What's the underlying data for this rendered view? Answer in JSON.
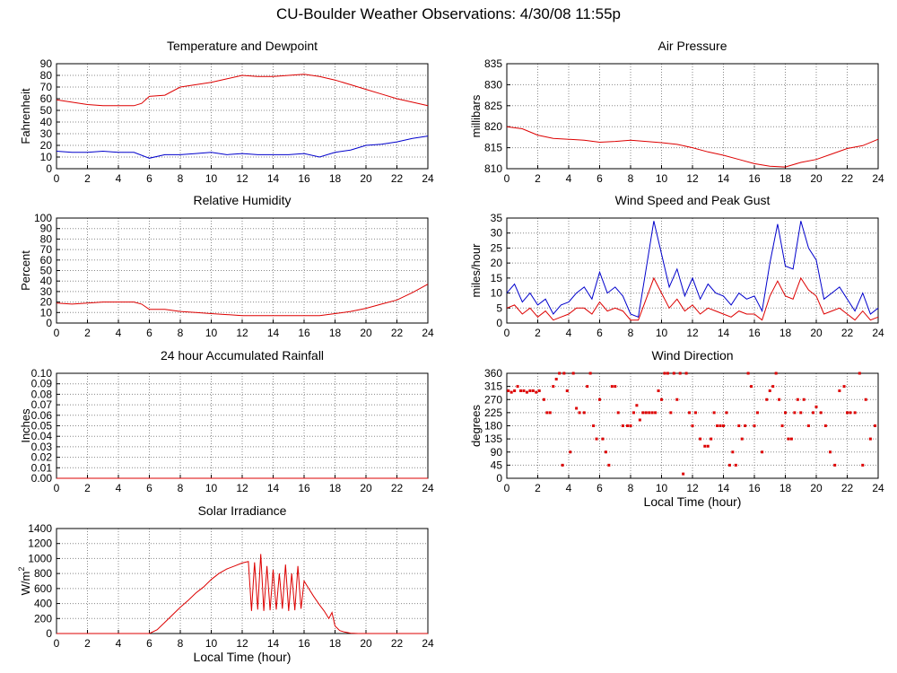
{
  "page": {
    "title": "CU-Boulder Weather Observations: 4/30/08 11:55p"
  },
  "colors": {
    "red": "#dd0000",
    "blue": "#0000cc",
    "grid": "#888888"
  },
  "chart_data": [
    {
      "id": "temp",
      "type": "line",
      "title": "Temperature and Dewpoint",
      "ylabel": "Fahrenheit",
      "xlabel": "",
      "xlim": [
        0,
        24
      ],
      "ylim": [
        0,
        90
      ],
      "xticks": [
        0,
        2,
        4,
        6,
        8,
        10,
        12,
        14,
        16,
        18,
        20,
        22,
        24
      ],
      "yticks": [
        0,
        10,
        20,
        30,
        40,
        50,
        60,
        70,
        80,
        90
      ],
      "grid": true,
      "series": [
        {
          "color": "#dd0000",
          "x": [
            0,
            1,
            2,
            3,
            4,
            5,
            5.5,
            6,
            7,
            8,
            9,
            10,
            11,
            12,
            13,
            14,
            15,
            16,
            17,
            18,
            19,
            20,
            21,
            22,
            23,
            24
          ],
          "y": [
            59,
            57,
            55,
            54,
            54,
            54,
            56,
            62,
            63,
            70,
            72,
            74,
            77,
            80,
            79,
            79,
            80,
            81,
            79,
            76,
            72,
            68,
            64,
            60,
            57,
            54
          ]
        },
        {
          "color": "#0000cc",
          "x": [
            0,
            1,
            2,
            3,
            4,
            5,
            6,
            7,
            8,
            9,
            10,
            11,
            12,
            13,
            14,
            15,
            16,
            17,
            18,
            19,
            20,
            21,
            22,
            23,
            24
          ],
          "y": [
            15,
            14,
            14,
            15,
            14,
            14,
            9,
            12,
            12,
            13,
            14,
            12,
            13,
            12,
            12,
            12,
            13,
            10,
            14,
            16,
            20,
            21,
            23,
            26,
            28
          ]
        }
      ]
    },
    {
      "id": "pressure",
      "type": "line",
      "title": "Air Pressure",
      "ylabel": "millibars",
      "xlabel": "",
      "xlim": [
        0,
        24
      ],
      "ylim": [
        810,
        835
      ],
      "xticks": [
        0,
        2,
        4,
        6,
        8,
        10,
        12,
        14,
        16,
        18,
        20,
        22,
        24
      ],
      "yticks": [
        810,
        815,
        820,
        825,
        830,
        835
      ],
      "grid": true,
      "series": [
        {
          "color": "#dd0000",
          "x": [
            0,
            1,
            2,
            3,
            4,
            5,
            6,
            7,
            8,
            9,
            10,
            11,
            12,
            13,
            14,
            15,
            16,
            17,
            18,
            19,
            20,
            21,
            22,
            23,
            24
          ],
          "y": [
            820,
            819.5,
            818,
            817.2,
            817,
            816.8,
            816.3,
            816.5,
            816.8,
            816.5,
            816.2,
            815.8,
            815,
            814,
            813.2,
            812.2,
            811.2,
            810.6,
            810.4,
            811.5,
            812.2,
            813.5,
            814.8,
            815.5,
            817
          ]
        }
      ]
    },
    {
      "id": "humidity",
      "type": "line",
      "title": "Relative Humidity",
      "ylabel": "Percent",
      "xlabel": "",
      "xlim": [
        0,
        24
      ],
      "ylim": [
        0,
        100
      ],
      "xticks": [
        0,
        2,
        4,
        6,
        8,
        10,
        12,
        14,
        16,
        18,
        20,
        22,
        24
      ],
      "yticks": [
        0,
        10,
        20,
        30,
        40,
        50,
        60,
        70,
        80,
        90,
        100
      ],
      "grid": true,
      "series": [
        {
          "color": "#dd0000",
          "x": [
            0,
            1,
            2,
            3,
            4,
            5,
            5.5,
            6,
            7,
            8,
            9,
            10,
            11,
            12,
            13,
            14,
            15,
            16,
            17,
            18,
            19,
            20,
            21,
            22,
            23,
            24
          ],
          "y": [
            19,
            18,
            19,
            20,
            20,
            20,
            18,
            13,
            13,
            11,
            10,
            9,
            8,
            7,
            7,
            7,
            7,
            7,
            7,
            9,
            11,
            14,
            18,
            22,
            29,
            37
          ]
        }
      ]
    },
    {
      "id": "wind",
      "type": "line",
      "title": "Wind Speed and Peak Gust",
      "ylabel": "miles/hour",
      "xlabel": "",
      "xlim": [
        0,
        24
      ],
      "ylim": [
        0,
        35
      ],
      "xticks": [
        0,
        2,
        4,
        6,
        8,
        10,
        12,
        14,
        16,
        18,
        20,
        22,
        24
      ],
      "yticks": [
        0,
        5,
        10,
        15,
        20,
        25,
        30,
        35
      ],
      "grid": true,
      "series": [
        {
          "color": "#0000cc",
          "x": [
            0,
            0.5,
            1,
            1.5,
            2,
            2.5,
            3,
            3.5,
            4,
            4.5,
            5,
            5.5,
            6,
            6.5,
            7,
            7.5,
            8,
            8.5,
            9,
            9.5,
            10,
            10.5,
            11,
            11.5,
            12,
            12.5,
            13,
            13.5,
            14,
            14.5,
            15,
            15.5,
            16,
            16.5,
            17,
            17.5,
            18,
            18.5,
            19,
            19.5,
            20,
            20.5,
            21,
            21.5,
            22,
            22.5,
            23,
            23.5,
            24
          ],
          "y": [
            10,
            13,
            7,
            10,
            6,
            8,
            3,
            6,
            7,
            10,
            12,
            8,
            17,
            10,
            12,
            9,
            3,
            2,
            18,
            34,
            23,
            12,
            18,
            9,
            15,
            8,
            13,
            10,
            9,
            6,
            10,
            8,
            9,
            4,
            20,
            33,
            19,
            18,
            34,
            25,
            21,
            8,
            10,
            12,
            8,
            4,
            10,
            3,
            5
          ]
        },
        {
          "color": "#dd0000",
          "x": [
            0,
            0.5,
            1,
            1.5,
            2,
            2.5,
            3,
            3.5,
            4,
            4.5,
            5,
            5.5,
            6,
            6.5,
            7,
            7.5,
            8,
            8.5,
            9,
            9.5,
            10,
            10.5,
            11,
            11.5,
            12,
            12.5,
            13,
            13.5,
            14,
            14.5,
            15,
            15.5,
            16,
            16.5,
            17,
            17.5,
            18,
            18.5,
            19,
            19.5,
            20,
            20.5,
            21,
            21.5,
            22,
            22.5,
            23,
            23.5,
            24
          ],
          "y": [
            5,
            6,
            3,
            5,
            2,
            4,
            1,
            2,
            3,
            5,
            5,
            3,
            7,
            4,
            5,
            4,
            1,
            1,
            8,
            15,
            10,
            5,
            8,
            4,
            6,
            3,
            5,
            4,
            3,
            2,
            4,
            3,
            3,
            1,
            9,
            14,
            9,
            8,
            15,
            11,
            9,
            3,
            4,
            5,
            3,
            1,
            4,
            1,
            2
          ]
        }
      ]
    },
    {
      "id": "rainfall",
      "type": "line",
      "title": "24 hour Accumulated Rainfall",
      "ylabel": "Inches",
      "xlabel": "",
      "xlim": [
        0,
        24
      ],
      "ylim": [
        0,
        0.1
      ],
      "xticks": [
        0,
        2,
        4,
        6,
        8,
        10,
        12,
        14,
        16,
        18,
        20,
        22,
        24
      ],
      "yticks": [
        "0.00",
        "0.01",
        "0.02",
        "0.03",
        "0.04",
        "0.05",
        "0.06",
        "0.07",
        "0.08",
        "0.09",
        "0.10"
      ],
      "grid": true,
      "series": [
        {
          "color": "#dd0000",
          "x": [
            0,
            24
          ],
          "y": [
            0,
            0
          ]
        }
      ]
    },
    {
      "id": "direction",
      "type": "scatter",
      "title": "Wind Direction",
      "ylabel": "degrees",
      "xlabel": "Local Time (hour)",
      "xlim": [
        0,
        24
      ],
      "ylim": [
        0,
        360
      ],
      "xticks": [
        0,
        2,
        4,
        6,
        8,
        10,
        12,
        14,
        16,
        18,
        20,
        22,
        24
      ],
      "yticks": [
        0,
        45,
        90,
        135,
        180,
        225,
        270,
        315,
        360
      ],
      "grid": true,
      "series": [
        {
          "color": "#dd0000",
          "x": [
            0.1,
            0.3,
            0.5,
            0.7,
            0.9,
            1.1,
            1.3,
            1.5,
            1.7,
            1.9,
            2.1,
            2.4,
            2.6,
            2.8,
            3.0,
            3.2,
            3.4,
            3.6,
            3.7,
            3.9,
            4.1,
            4.3,
            4.5,
            4.7,
            5.0,
            5.2,
            5.4,
            5.6,
            5.8,
            6.0,
            6.2,
            6.4,
            6.6,
            6.8,
            7.0,
            7.2,
            7.5,
            7.8,
            8.0,
            8.2,
            8.4,
            8.6,
            8.8,
            9.0,
            9.2,
            9.4,
            9.6,
            9.8,
            10.0,
            10.2,
            10.4,
            10.6,
            10.8,
            11.0,
            11.2,
            11.4,
            11.6,
            11.8,
            12.0,
            12.2,
            12.5,
            12.8,
            13.0,
            13.2,
            13.4,
            13.6,
            13.8,
            14.0,
            14.2,
            14.4,
            14.6,
            14.8,
            15.0,
            15.2,
            15.4,
            15.6,
            15.8,
            16.0,
            16.2,
            16.5,
            16.8,
            17.0,
            17.2,
            17.4,
            17.6,
            17.8,
            18.0,
            18.2,
            18.4,
            18.6,
            18.8,
            19.0,
            19.2,
            19.5,
            19.8,
            20.0,
            20.3,
            20.6,
            20.9,
            21.2,
            21.5,
            21.8,
            22.0,
            22.2,
            22.5,
            22.8,
            23.0,
            23.2,
            23.5,
            23.8
          ],
          "y": [
            300,
            295,
            300,
            315,
            300,
            300,
            295,
            300,
            300,
            295,
            300,
            270,
            225,
            225,
            315,
            340,
            360,
            45,
            360,
            300,
            90,
            360,
            240,
            225,
            225,
            315,
            360,
            180,
            135,
            270,
            135,
            90,
            45,
            315,
            315,
            225,
            180,
            180,
            180,
            225,
            250,
            200,
            225,
            225,
            225,
            225,
            225,
            300,
            270,
            360,
            360,
            225,
            360,
            270,
            360,
            15,
            360,
            225,
            180,
            225,
            135,
            110,
            110,
            135,
            225,
            180,
            180,
            180,
            225,
            45,
            90,
            45,
            180,
            135,
            180,
            360,
            315,
            180,
            225,
            90,
            270,
            300,
            315,
            360,
            270,
            180,
            225,
            135,
            135,
            225,
            270,
            225,
            270,
            180,
            225,
            245,
            225,
            180,
            90,
            45,
            300,
            315,
            225,
            225,
            225,
            360,
            45,
            270,
            135,
            180
          ]
        }
      ]
    },
    {
      "id": "solar",
      "type": "line",
      "title": "Solar Irradiance",
      "ylabel": "W/m",
      "ylabel_sup": "2",
      "xlabel": "Local Time (hour)",
      "xlim": [
        0,
        24
      ],
      "ylim": [
        0,
        1400
      ],
      "xticks": [
        0,
        2,
        4,
        6,
        8,
        10,
        12,
        14,
        16,
        18,
        20,
        22,
        24
      ],
      "yticks": [
        0,
        200,
        400,
        600,
        800,
        1000,
        1200,
        1400
      ],
      "grid": true,
      "series": [
        {
          "color": "#dd0000",
          "x": [
            0,
            6,
            6.5,
            7,
            7.5,
            8,
            8.5,
            9,
            9.5,
            10,
            10.5,
            11,
            11.5,
            12,
            12.4,
            12.6,
            12.8,
            13.0,
            13.2,
            13.4,
            13.6,
            13.8,
            14.0,
            14.2,
            14.4,
            14.6,
            14.8,
            15.0,
            15.2,
            15.4,
            15.6,
            15.8,
            16.0,
            16.3,
            16.6,
            17.0,
            17.3,
            17.6,
            17.8,
            18.0,
            18.3,
            18.6,
            19.0,
            19.5,
            20,
            24
          ],
          "y": [
            0,
            0,
            50,
            150,
            250,
            350,
            440,
            540,
            620,
            720,
            800,
            860,
            900,
            940,
            960,
            300,
            950,
            320,
            1060,
            300,
            900,
            310,
            850,
            320,
            800,
            330,
            920,
            300,
            800,
            310,
            900,
            330,
            700,
            600,
            500,
            380,
            300,
            200,
            280,
            100,
            40,
            20,
            5,
            0,
            0,
            0
          ]
        }
      ]
    }
  ]
}
